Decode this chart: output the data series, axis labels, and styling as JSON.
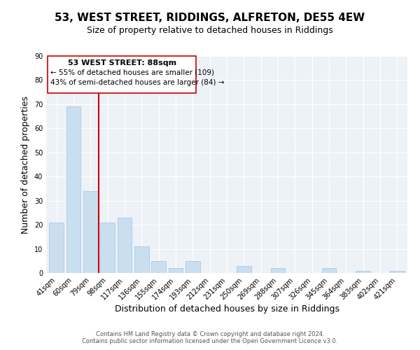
{
  "title": "53, WEST STREET, RIDDINGS, ALFRETON, DE55 4EW",
  "subtitle": "Size of property relative to detached houses in Riddings",
  "xlabel": "Distribution of detached houses by size in Riddings",
  "ylabel": "Number of detached properties",
  "categories": [
    "41sqm",
    "60sqm",
    "79sqm",
    "98sqm",
    "117sqm",
    "136sqm",
    "155sqm",
    "174sqm",
    "193sqm",
    "212sqm",
    "231sqm",
    "250sqm",
    "269sqm",
    "288sqm",
    "307sqm",
    "326sqm",
    "345sqm",
    "364sqm",
    "383sqm",
    "402sqm",
    "421sqm"
  ],
  "values": [
    21,
    69,
    34,
    21,
    23,
    11,
    5,
    2,
    5,
    0,
    0,
    3,
    0,
    2,
    0,
    0,
    2,
    0,
    1,
    0,
    1
  ],
  "bar_color": "#c9dff0",
  "bar_edge_color": "#a8c8e8",
  "vline_x": 2.5,
  "vline_color": "#cc0000",
  "annotation_title": "53 WEST STREET: 88sqm",
  "annotation_line1": "← 55% of detached houses are smaller (109)",
  "annotation_line2": "43% of semi-detached houses are larger (84) →",
  "ylim": [
    0,
    90
  ],
  "footer1": "Contains HM Land Registry data © Crown copyright and database right 2024.",
  "footer2": "Contains public sector information licensed under the Open Government Licence v3.0.",
  "background_color": "#edf2f7",
  "plot_background": "#ffffff",
  "title_fontsize": 11,
  "subtitle_fontsize": 9,
  "tick_fontsize": 7,
  "axis_label_fontsize": 9
}
